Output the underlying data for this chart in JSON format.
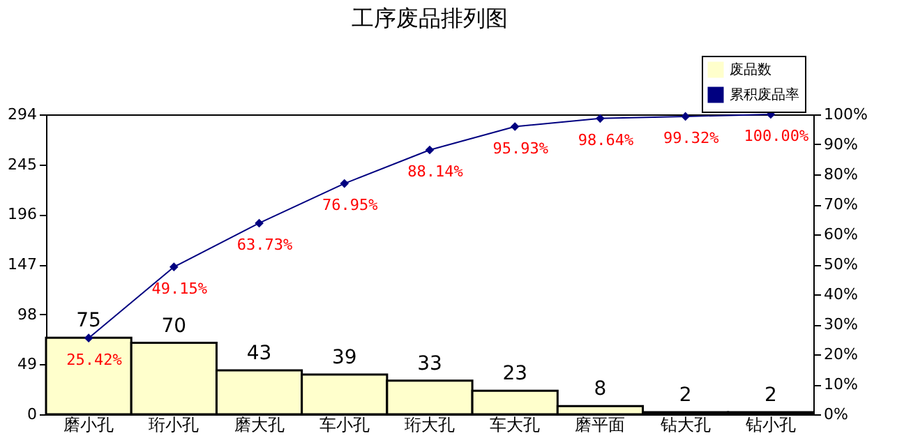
{
  "chart_data": {
    "type": "bar",
    "title": "工序废品排列图",
    "categories": [
      "磨小孔",
      "珩小孔",
      "磨大孔",
      "车小孔",
      "珩大孔",
      "车大孔",
      "磨平面",
      "钻大孔",
      "钻小孔"
    ],
    "series": [
      {
        "name": "废品数",
        "color": "#ffffcc",
        "values": [
          75,
          70,
          43,
          39,
          33,
          23,
          8,
          2,
          2
        ]
      },
      {
        "name": "累积废品率",
        "type": "line",
        "axis": "y2",
        "color": "#000080",
        "marker": "diamond",
        "line_style": "solid",
        "values": [
          25.42,
          49.15,
          63.73,
          76.95,
          88.14,
          95.93,
          98.64,
          99.32,
          100.0
        ],
        "value_labels": [
          "25.42%",
          "49.15%",
          "63.73%",
          "76.95%",
          "88.14%",
          "95.93%",
          "98.64%",
          "99.32%",
          "100.00%"
        ]
      }
    ],
    "data_labels": true,
    "ylim": [
      0,
      294
    ],
    "yticks": [
      0,
      49,
      98,
      147,
      196,
      245,
      294
    ],
    "y2lim": [
      0,
      100
    ],
    "y2ticks": [
      {
        "value": 0,
        "label": "0%"
      },
      {
        "value": 10,
        "label": "10%"
      },
      {
        "value": 20,
        "label": "20%"
      },
      {
        "value": 30,
        "label": "30%"
      },
      {
        "value": 40,
        "label": "40%"
      },
      {
        "value": 50,
        "label": "50%"
      },
      {
        "value": 60,
        "label": "60%"
      },
      {
        "value": 70,
        "label": "70%"
      },
      {
        "value": 80,
        "label": "80%"
      },
      {
        "value": 90,
        "label": "90%"
      },
      {
        "value": 100,
        "label": "100%"
      }
    ],
    "grid": false,
    "legend": "top right"
  }
}
